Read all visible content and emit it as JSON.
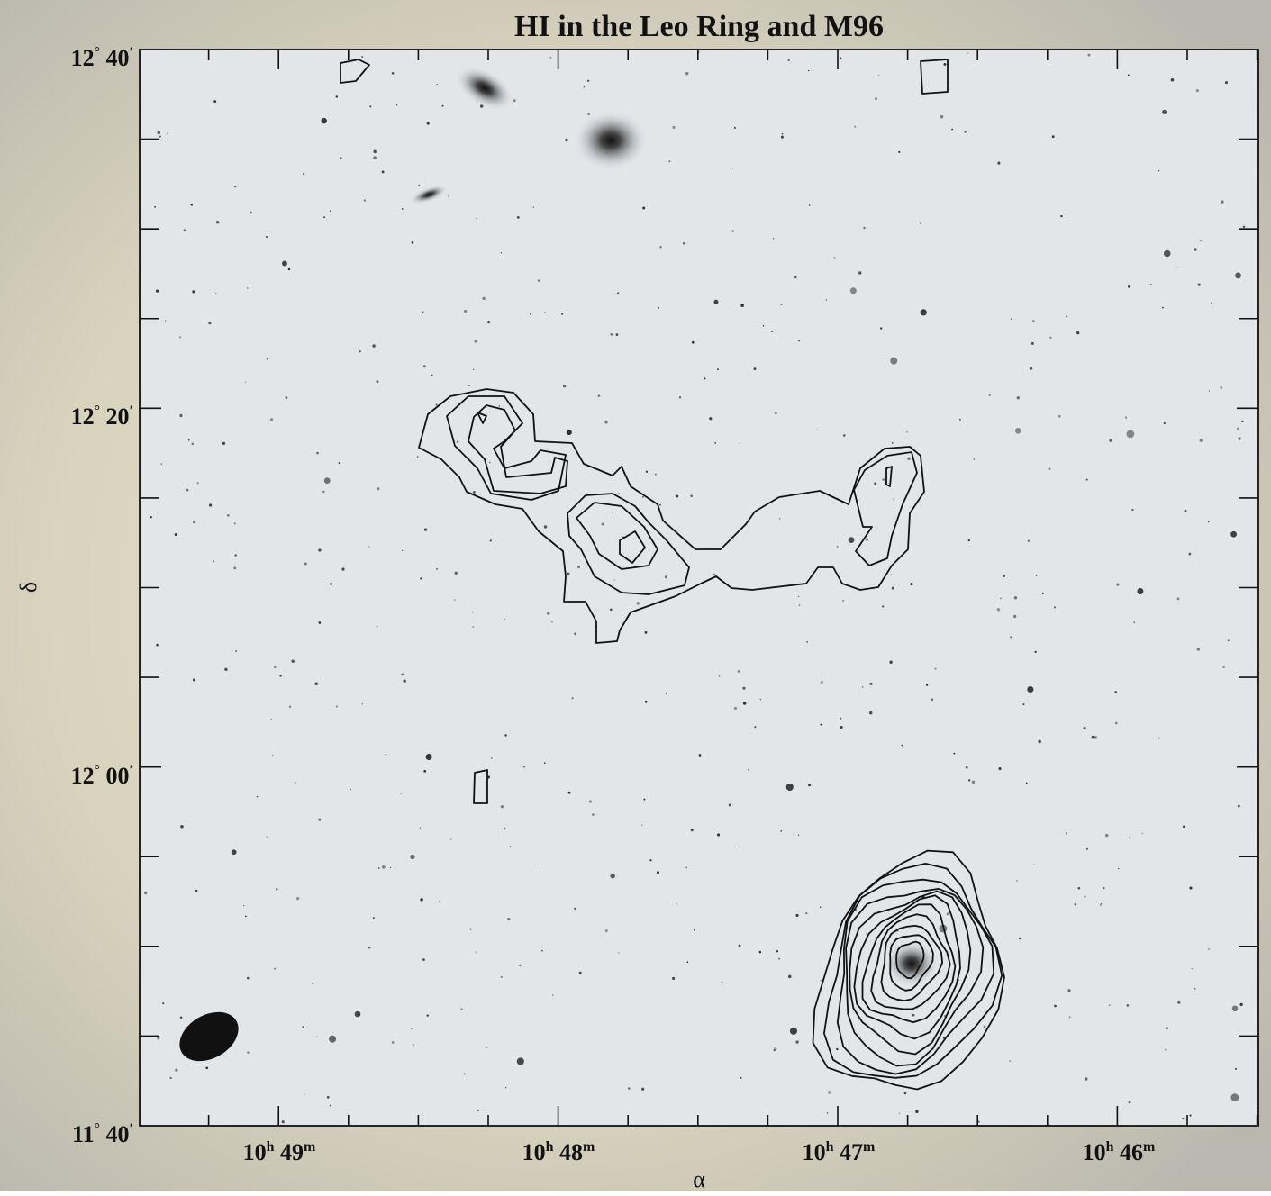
{
  "figure": {
    "title": "HI in the Leo Ring and M96",
    "x_label": "α",
    "y_label": "δ",
    "x_tick_labels": [
      [
        "10",
        "h",
        " 49",
        "m"
      ],
      [
        "10",
        "h",
        " 48",
        "m"
      ],
      [
        "10",
        "h",
        " 47",
        "m"
      ],
      [
        "10",
        "h",
        " 46",
        "m"
      ]
    ],
    "y_tick_labels": [
      [
        "12",
        "°",
        " 40",
        "′"
      ],
      [
        "12",
        "°",
        " 20",
        "′"
      ],
      [
        "12",
        "°",
        " 00",
        "′"
      ],
      [
        "11",
        "°",
        " 40",
        "′"
      ]
    ]
  }
}
